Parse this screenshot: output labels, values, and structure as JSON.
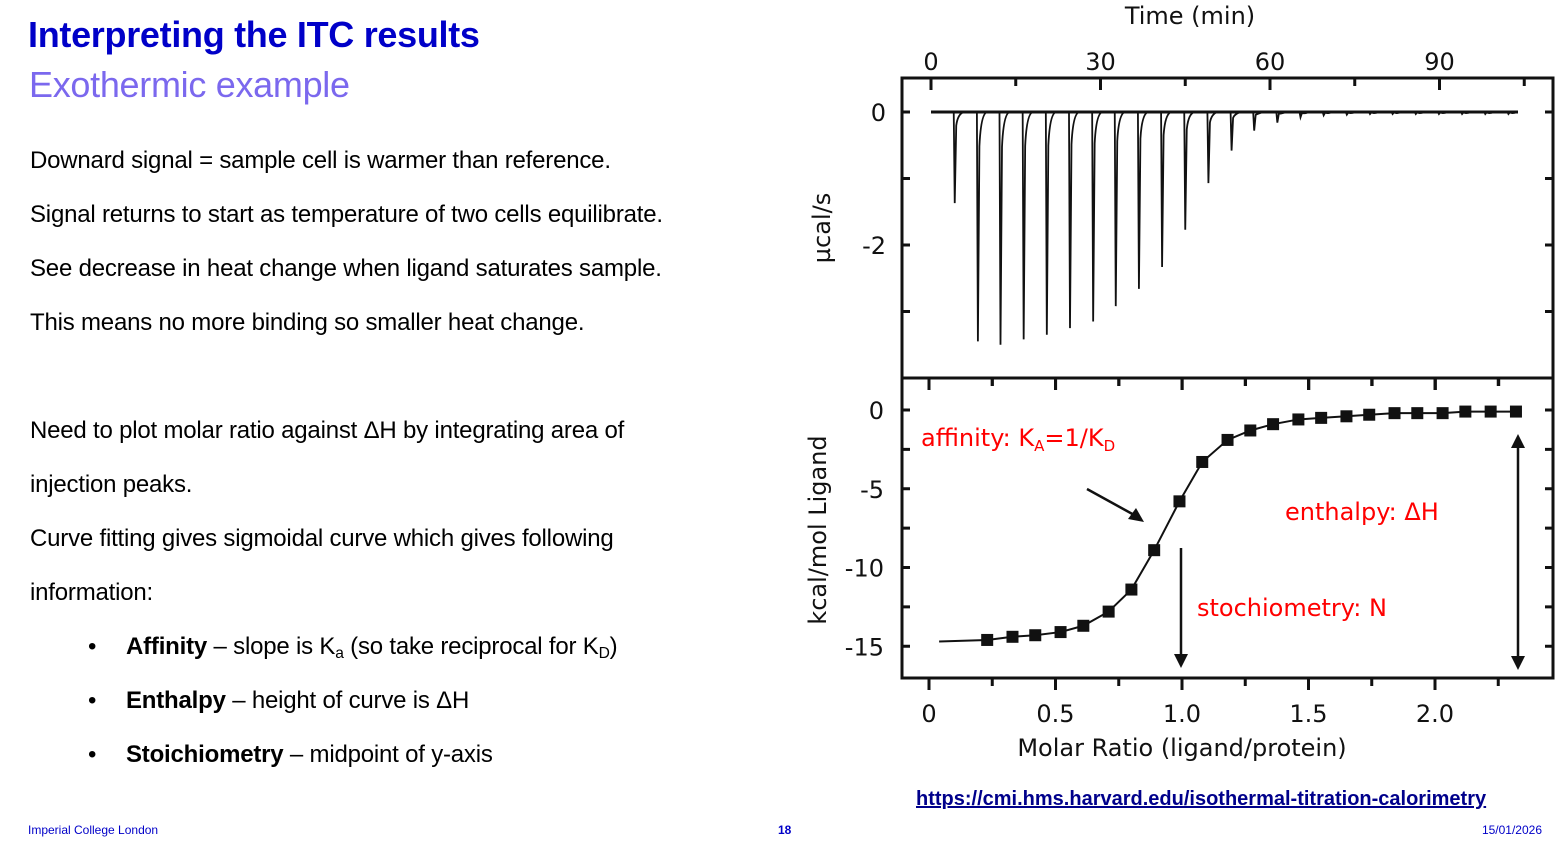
{
  "slide": {
    "title": "Interpreting the ITC results",
    "subtitle": "Exothermic example",
    "paragraphs": [
      "Downard signal = sample cell is warmer than reference.",
      "Signal returns to start as temperature of two cells equilibrate.",
      "See decrease in heat change when ligand saturates sample.",
      "This means no more binding so smaller heat change.",
      "Need to plot molar ratio against ΔH by integrating area of",
      "injection peaks.",
      "Curve fitting gives sigmoidal curve which gives following",
      "information:"
    ],
    "bullets": [
      {
        "bold": "Affinity",
        "text_before_sub": " – slope is K",
        "sub1": "a",
        "text_mid": " (so take reciprocal for K",
        "sub2": "D",
        "text_after": ")"
      },
      {
        "bold": "Enthalpy",
        "text": " – height of curve is ΔH"
      },
      {
        "bold": "Stoichiometry",
        "text": " – midpoint of y-axis"
      }
    ],
    "bullet_glyph": "•",
    "source_link": "https://cmi.hms.harvard.edu/isothermal-titration-calorimetry",
    "footer": {
      "institution": "Imperial College London",
      "page_number": "18",
      "date": "15/01/2026"
    },
    "colors": {
      "title": "#0000c8",
      "subtitle": "#7b68ee",
      "annotation": "#ff0000",
      "footer": "#0000c8"
    }
  },
  "chart_data": [
    {
      "type": "line",
      "title": "",
      "xlabel": "Time (min)",
      "ylabel": "µcal/s",
      "x_axis_position": "top",
      "xticks": [
        0,
        30,
        60,
        90
      ],
      "yticks": [
        0,
        -2
      ],
      "xlim": [
        -5,
        110
      ],
      "ylim": [
        -4.0,
        0.5
      ],
      "grid": false,
      "series": [
        {
          "name": "raw heat injection peaks",
          "peak_times_min": [
            4.2,
            8.3,
            12.3,
            16.4,
            20.5,
            24.6,
            28.7,
            32.7,
            36.8,
            40.9,
            45.0,
            49.1,
            53.2,
            57.2,
            61.3,
            65.4,
            69.5,
            73.6,
            77.7,
            81.7,
            85.8,
            89.9,
            94.0,
            98.1,
            102.2
          ],
          "peak_depths_ucal_s": [
            -1.37,
            -3.45,
            -3.5,
            -3.42,
            -3.35,
            -3.25,
            -3.15,
            -2.92,
            -2.66,
            -2.33,
            -1.77,
            -1.07,
            -0.58,
            -0.28,
            -0.16,
            -0.08,
            -0.05,
            -0.04,
            -0.03,
            -0.03,
            -0.03,
            -0.03,
            -0.03,
            -0.03,
            -0.03
          ]
        }
      ]
    },
    {
      "type": "scatter",
      "title": "",
      "xlabel": "Molar Ratio (ligand/protein)",
      "ylabel": "kcal/mol Ligand",
      "xticks": [
        0,
        0.5,
        1.0,
        1.5,
        2.0
      ],
      "xtick_labels": [
        "0",
        "0.5",
        "1.0",
        "1.5",
        "2.0"
      ],
      "yticks": [
        0,
        -5,
        -10,
        -15
      ],
      "xlim": [
        -0.1,
        2.45
      ],
      "ylim": [
        -17,
        1.5
      ],
      "grid": false,
      "series": [
        {
          "name": "integrated heats",
          "x": [
            0.23,
            0.33,
            0.42,
            0.52,
            0.61,
            0.71,
            0.8,
            0.89,
            0.99,
            1.08,
            1.18,
            1.27,
            1.36,
            1.46,
            1.55,
            1.65,
            1.74,
            1.84,
            1.93,
            2.03,
            2.12,
            2.22,
            2.32
          ],
          "y": [
            -14.6,
            -14.4,
            -14.3,
            -14.1,
            -13.7,
            -12.8,
            -11.4,
            -8.9,
            -5.8,
            -3.3,
            -1.9,
            -1.3,
            -0.9,
            -0.6,
            -0.5,
            -0.4,
            -0.3,
            -0.2,
            -0.2,
            -0.2,
            -0.1,
            -0.1,
            -0.1
          ]
        },
        {
          "name": "sigmoidal fit",
          "x": [
            0.04,
            0.23,
            0.42,
            0.61,
            0.71,
            0.8,
            0.89,
            0.99,
            1.08,
            1.18,
            1.27,
            1.46,
            1.74,
            2.03,
            2.32
          ],
          "y": [
            -14.7,
            -14.6,
            -14.3,
            -13.7,
            -12.8,
            -11.4,
            -8.9,
            -5.8,
            -3.3,
            -1.9,
            -1.3,
            -0.6,
            -0.3,
            -0.2,
            -0.1
          ]
        }
      ],
      "annotations": [
        {
          "text": "affinity: K",
          "sub": "A",
          "text2": "=1/K",
          "sub2": "D",
          "color": "#ff0000",
          "arrow_to": [
            0.85,
            -7.0
          ]
        },
        {
          "text": "enthalpy: ΔH",
          "color": "#ff0000",
          "double_arrow_x": 2.32,
          "from_y": -1.5,
          "to_y": -16.3
        },
        {
          "text": "stochiometry: N",
          "color": "#ff0000",
          "arrow_x": 1.0,
          "from_y": -8.6,
          "to_y": -16.3
        }
      ]
    }
  ]
}
